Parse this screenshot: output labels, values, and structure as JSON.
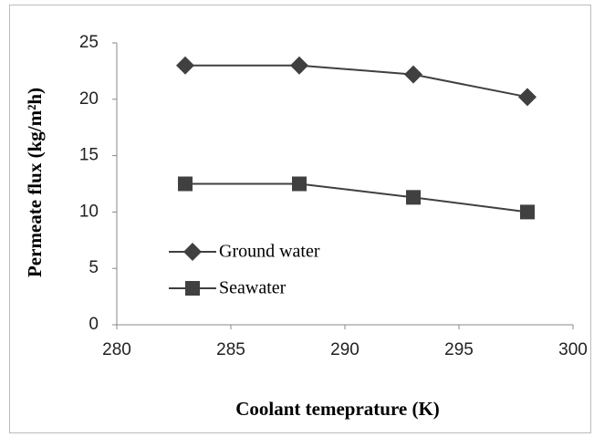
{
  "chart_data": {
    "type": "line",
    "xlabel": "Coolant temeprature (K)",
    "ylabel": "Permeate flux (kg/m²h)",
    "x": [
      283,
      288,
      293,
      298
    ],
    "series": [
      {
        "name": "Ground water",
        "color": "#404040",
        "marker": "diamond",
        "values": [
          23.0,
          23.0,
          22.2,
          20.2
        ]
      },
      {
        "name": "Seawater",
        "color": "#404040",
        "marker": "square",
        "values": [
          12.5,
          12.5,
          11.3,
          10.0
        ]
      }
    ],
    "xlim": [
      280,
      300
    ],
    "xticks": [
      280,
      285,
      290,
      295,
      300
    ],
    "ylim": [
      0,
      25
    ],
    "yticks": [
      0,
      5,
      10,
      15,
      20,
      25
    ],
    "legend": "lower left",
    "grid": false
  }
}
